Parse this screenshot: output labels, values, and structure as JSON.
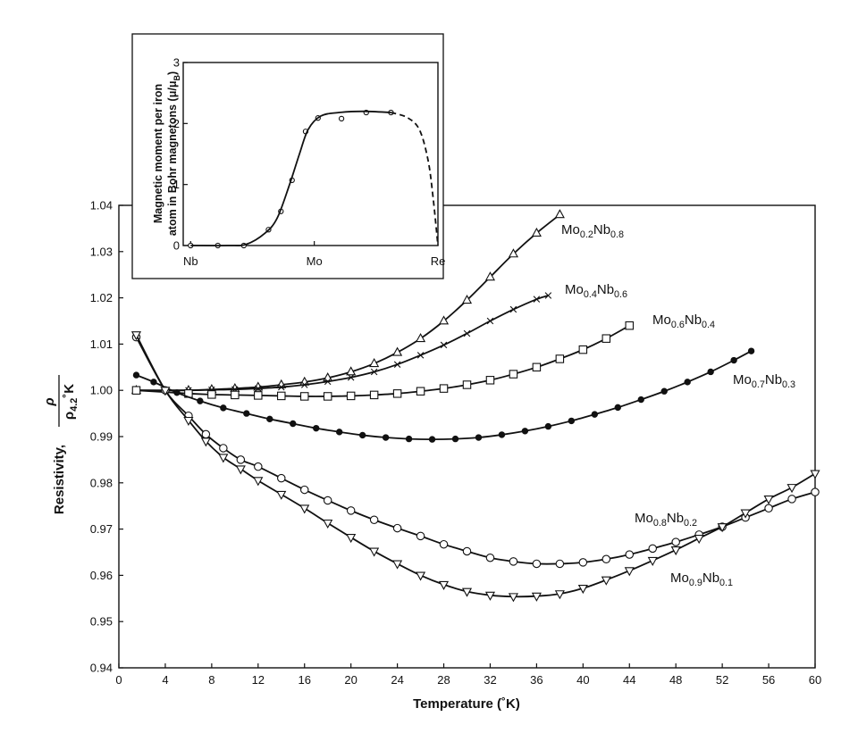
{
  "chart_data": [
    {
      "type": "line",
      "xlabel": "Temperature (˚K)",
      "ylabel": {
        "text": "Resistivity,",
        "numerator": "ρ",
        "denominator": "ρ4.2˚K"
      },
      "xlim": [
        0,
        60
      ],
      "xticks": [
        0,
        4,
        8,
        12,
        16,
        20,
        24,
        28,
        32,
        36,
        40,
        44,
        48,
        52,
        56,
        60
      ],
      "ylim": [
        0.94,
        1.04
      ],
      "yticks": [
        0.94,
        0.95,
        0.96,
        0.97,
        0.98,
        0.99,
        {
          "value": 1,
          "label": "1.00"
        },
        1.01,
        1.02,
        1.03,
        1.04
      ],
      "color": "#111111",
      "series": [
        {
          "name": "Mo0.2Nb0.8",
          "marker": "triangle-up",
          "x": [
            1.5,
            6,
            8,
            10,
            12,
            14,
            16,
            18,
            20,
            22,
            24,
            26,
            28,
            30,
            32,
            34,
            36,
            38
          ],
          "values": [
            1.0,
            1.0,
            1.0002,
            1.0004,
            1.0007,
            1.0012,
            1.0018,
            1.0027,
            1.004,
            1.0058,
            1.0082,
            1.0112,
            1.015,
            1.0195,
            1.0245,
            1.0295,
            1.034,
            1.038
          ]
        },
        {
          "name": "Mo0.4Nb0.6",
          "marker": "x",
          "x": [
            1.5,
            6,
            8,
            10,
            12,
            14,
            16,
            18,
            20,
            22,
            24,
            26,
            28,
            30,
            32,
            34,
            36,
            37
          ],
          "values": [
            1.0,
            1.0,
            1.0001,
            1.0002,
            1.0004,
            1.0007,
            1.0012,
            1.0019,
            1.0028,
            1.004,
            1.0056,
            1.0076,
            1.0098,
            1.0123,
            1.015,
            1.0175,
            1.0197,
            1.0205
          ]
        },
        {
          "name": "Mo0.6Nb0.4",
          "marker": "square",
          "x": [
            1.5,
            6,
            8,
            10,
            12,
            14,
            16,
            18,
            20,
            22,
            24,
            26,
            28,
            30,
            32,
            34,
            36,
            38,
            40,
            42,
            44
          ],
          "values": [
            1.0,
            0.9993,
            0.9991,
            0.999,
            0.9989,
            0.9988,
            0.9987,
            0.9987,
            0.9988,
            0.999,
            0.9993,
            0.9998,
            1.0004,
            1.0012,
            1.0022,
            1.0035,
            1.005,
            1.0068,
            1.0088,
            1.0112,
            1.014
          ]
        },
        {
          "name": "Mo0.7Nb0.3",
          "marker": "filled-circle",
          "x": [
            1.5,
            3,
            5,
            7,
            9,
            11,
            13,
            15,
            17,
            19,
            21,
            23,
            25,
            27,
            29,
            31,
            33,
            35,
            37,
            39,
            41,
            43,
            45,
            47,
            49,
            51,
            53,
            54.5
          ],
          "values": [
            1.0033,
            1.0018,
            0.9995,
            0.9977,
            0.9962,
            0.995,
            0.9938,
            0.9928,
            0.9918,
            0.991,
            0.9903,
            0.9898,
            0.9895,
            0.9894,
            0.9895,
            0.9898,
            0.9904,
            0.9912,
            0.9922,
            0.9934,
            0.9948,
            0.9963,
            0.998,
            0.9998,
            1.0018,
            1.004,
            1.0065,
            1.0085
          ]
        },
        {
          "name": "Mo0.8Nb0.2",
          "marker": "circle",
          "x": [
            1.5,
            4,
            6,
            7.5,
            9,
            10.5,
            12,
            14,
            16,
            18,
            20,
            22,
            24,
            26,
            28,
            30,
            32,
            34,
            36,
            38,
            40,
            42,
            44,
            46,
            48,
            50,
            52,
            54,
            56,
            58,
            60
          ],
          "values": [
            1.0115,
            1.0,
            0.9945,
            0.9905,
            0.9875,
            0.985,
            0.9835,
            0.981,
            0.9785,
            0.9762,
            0.974,
            0.972,
            0.9702,
            0.9685,
            0.9667,
            0.9652,
            0.9638,
            0.963,
            0.9625,
            0.9625,
            0.9628,
            0.9635,
            0.9645,
            0.9658,
            0.9672,
            0.9688,
            0.9705,
            0.9725,
            0.9745,
            0.9765,
            0.978
          ]
        },
        {
          "name": "Mo0.9Nb0.1",
          "marker": "triangle-down",
          "x": [
            1.5,
            4,
            6,
            7.5,
            9,
            10.5,
            12,
            14,
            16,
            18,
            20,
            22,
            24,
            26,
            28,
            30,
            32,
            34,
            36,
            38,
            40,
            42,
            44,
            46,
            48,
            50,
            52,
            54,
            56,
            58,
            60
          ],
          "values": [
            1.012,
            1.0,
            0.9935,
            0.989,
            0.9855,
            0.983,
            0.9805,
            0.9775,
            0.9745,
            0.9713,
            0.9682,
            0.9652,
            0.9625,
            0.96,
            0.958,
            0.9565,
            0.9557,
            0.9554,
            0.9555,
            0.956,
            0.9572,
            0.959,
            0.961,
            0.9632,
            0.9655,
            0.968,
            0.9705,
            0.9735,
            0.9765,
            0.979,
            0.982
          ]
        }
      ]
    },
    {
      "type": "line",
      "ylabel": [
        "Magnetic moment per iron",
        "atom in Bohr magnetons (μ/μB)"
      ],
      "xlim": [
        -0.06,
        2
      ],
      "xticks": [
        {
          "value": 0,
          "label": "Nb"
        },
        {
          "value": 1,
          "label": "Mo"
        },
        {
          "value": 2,
          "label": "Re"
        }
      ],
      "ylim": [
        0,
        3
      ],
      "yticks": [
        0,
        1,
        2,
        3
      ],
      "color": "#111111",
      "series": [
        {
          "marker": "circle",
          "line": "none",
          "x": [
            0,
            0.22,
            0.43,
            0.63,
            0.73,
            0.82,
            0.93,
            1.03,
            1.22,
            1.42,
            1.62
          ],
          "values": [
            0,
            0,
            0,
            0.26,
            0.56,
            1.07,
            1.87,
            2.09,
            2.08,
            2.18,
            2.18
          ]
        },
        {
          "marker": "none",
          "line": "solid",
          "x": [
            0,
            0.3,
            0.45,
            0.6,
            0.7,
            0.8,
            0.88,
            0.95,
            1.05,
            1.2,
            1.4,
            1.62
          ],
          "values": [
            0,
            0,
            0.02,
            0.2,
            0.45,
            1.0,
            1.5,
            1.9,
            2.12,
            2.18,
            2.2,
            2.18
          ]
        },
        {
          "marker": "none",
          "line": "dashed",
          "x": [
            1.62,
            1.75,
            1.85,
            1.92,
            1.96,
            2.0
          ],
          "values": [
            2.18,
            2.1,
            1.9,
            1.4,
            0.8,
            0
          ]
        }
      ]
    }
  ]
}
